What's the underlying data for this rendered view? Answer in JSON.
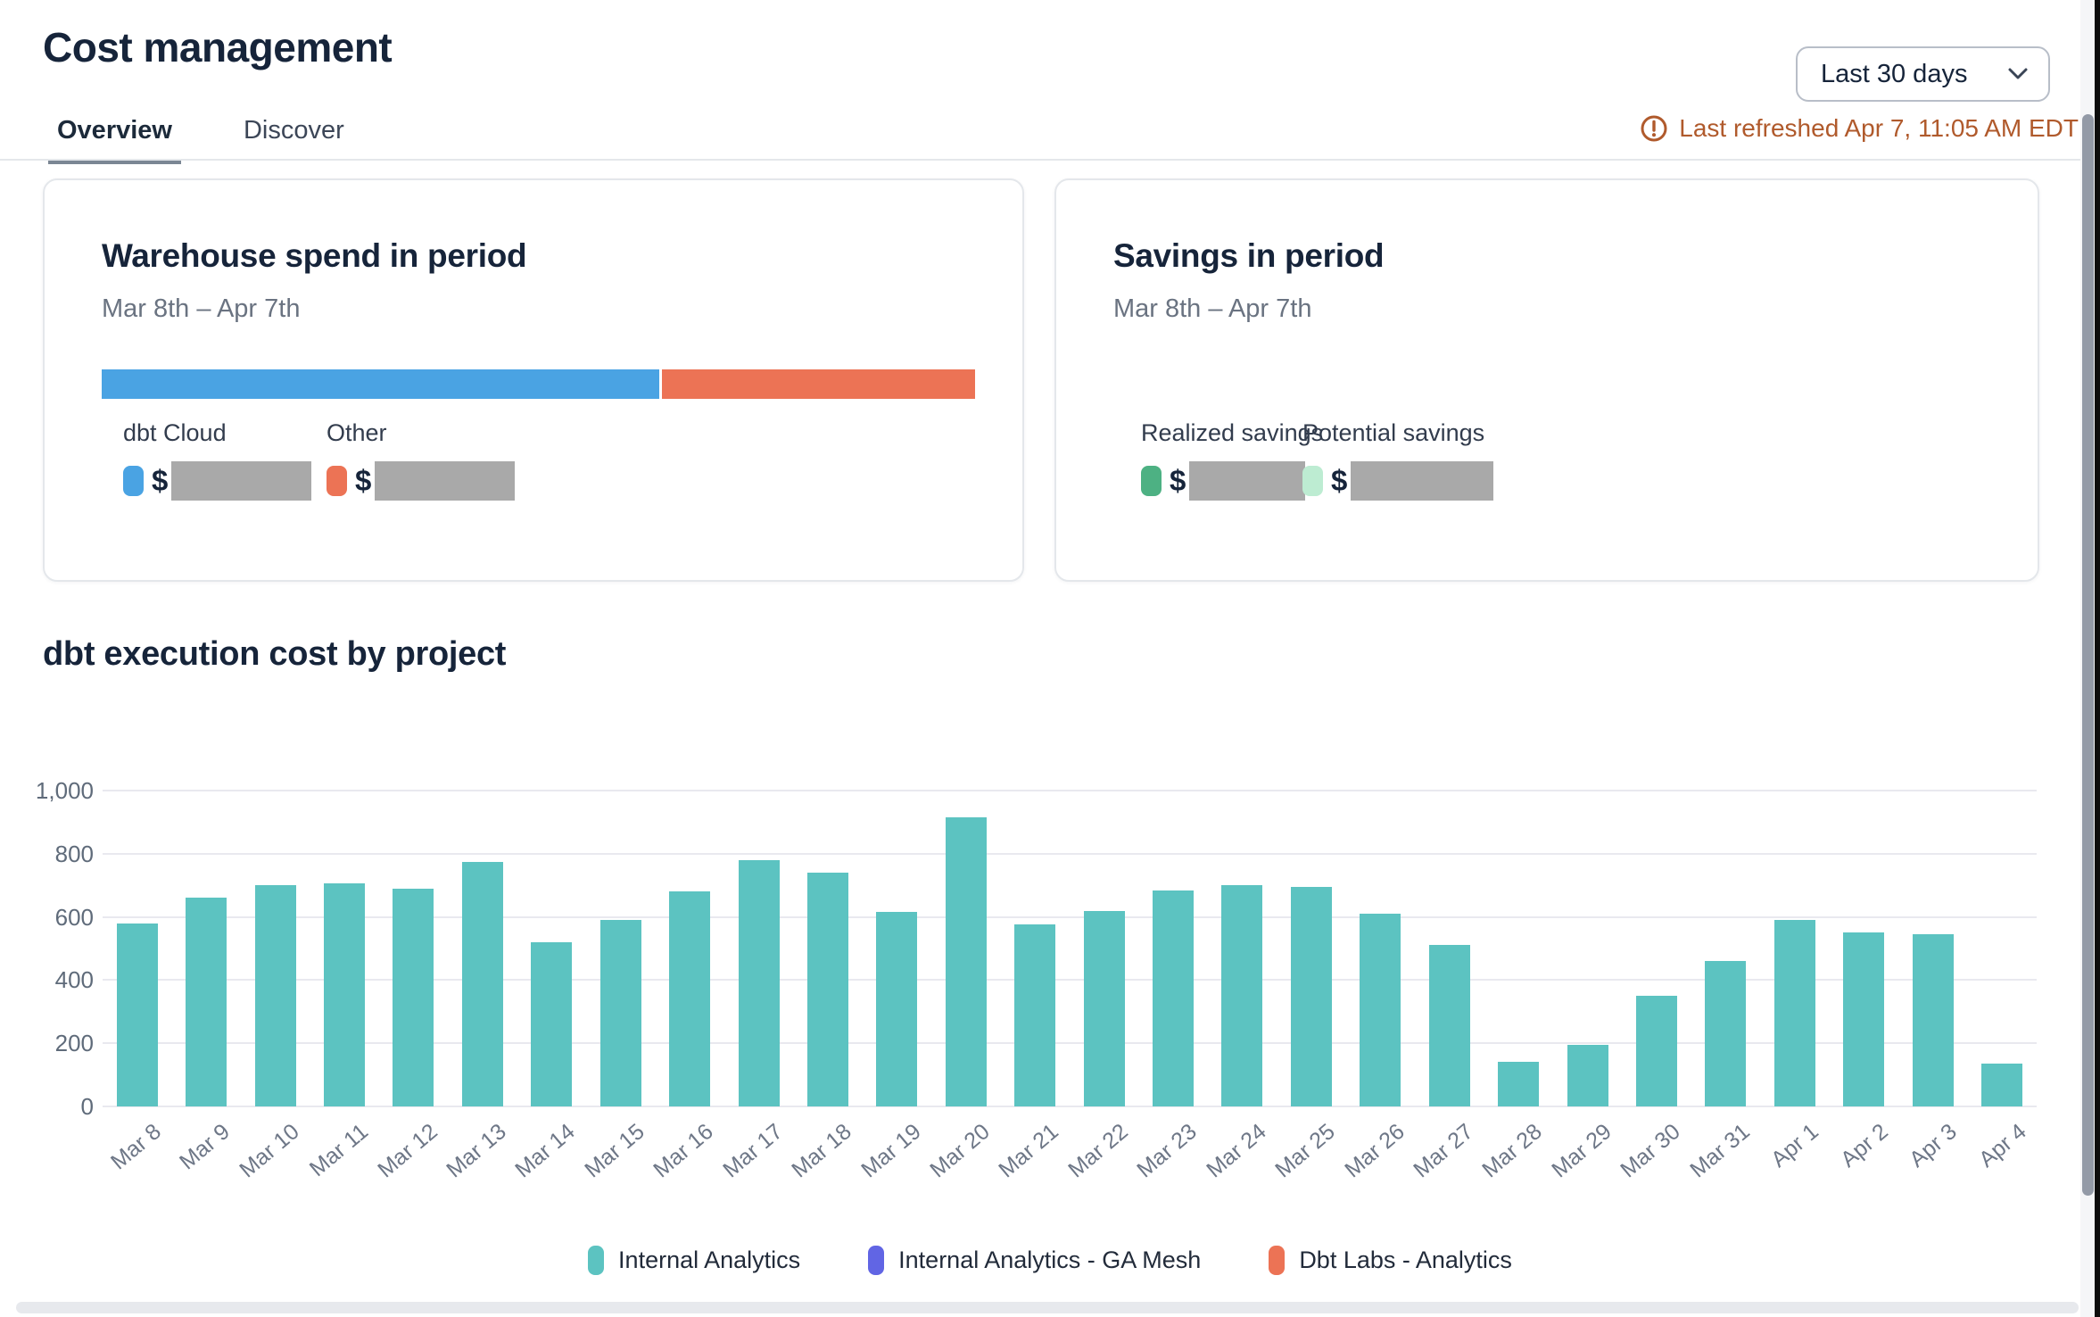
{
  "page": {
    "title": "Cost management"
  },
  "tabs": {
    "overview": "Overview",
    "discover": "Discover"
  },
  "period_dropdown": {
    "value": "Last 30 days"
  },
  "refresh": {
    "message": "Last refreshed Apr 7, 11:05 AM EDT",
    "color": "#b05a2c"
  },
  "warehouse_card": {
    "title": "Warehouse spend in period",
    "date_range": "Mar 8th – Apr 7th",
    "bar_segments": [
      {
        "label": "dbt Cloud",
        "color": "#4aa3e3",
        "pct": 64
      },
      {
        "label": "Other",
        "color": "#ec7355",
        "pct": 36
      }
    ],
    "legend": [
      {
        "label": "dbt Cloud",
        "currency": "$",
        "color": "#4aa3e3",
        "value_redacted": true
      },
      {
        "label": "Other",
        "currency": "$",
        "color": "#ec7355",
        "value_redacted": true
      }
    ]
  },
  "savings_card": {
    "title": "Savings in period",
    "date_range": "Mar 8th – Apr 7th",
    "legend": [
      {
        "label": "Realized savings",
        "currency": "$",
        "color": "#4db183",
        "value_redacted": true
      },
      {
        "label": "Potential savings",
        "currency": "$",
        "color": "#bdecd2",
        "value_redacted": true
      }
    ]
  },
  "chart_data": {
    "type": "bar",
    "title": "dbt execution cost by project",
    "categories": [
      "Mar 8",
      "Mar 9",
      "Mar 10",
      "Mar 11",
      "Mar 12",
      "Mar 13",
      "Mar 14",
      "Mar 15",
      "Mar 16",
      "Mar 17",
      "Mar 18",
      "Mar 19",
      "Mar 20",
      "Mar 21",
      "Mar 22",
      "Mar 23",
      "Mar 24",
      "Mar 25",
      "Mar 26",
      "Mar 27",
      "Mar 28",
      "Mar 29",
      "Mar 30",
      "Mar 31",
      "Apr 1",
      "Apr 2",
      "Apr 3",
      "Apr 4"
    ],
    "series": [
      {
        "name": "Internal Analytics",
        "color": "#5cc3c1",
        "values": [
          580,
          660,
          700,
          705,
          690,
          775,
          520,
          590,
          680,
          780,
          740,
          615,
          915,
          575,
          620,
          685,
          700,
          695,
          610,
          510,
          140,
          195,
          350,
          460,
          590,
          550,
          545,
          135
        ]
      }
    ],
    "legend": [
      {
        "label": "Internal Analytics",
        "color": "#5cc3c1"
      },
      {
        "label": "Internal Analytics - GA Mesh",
        "color": "#6165e4"
      },
      {
        "label": "Dbt Labs - Analytics",
        "color": "#ec7355"
      }
    ],
    "ylim": [
      0,
      1000
    ],
    "yticks": [
      0,
      200,
      400,
      600,
      800,
      1000
    ],
    "grid": true,
    "legend_position": "bottom",
    "xlabel": "",
    "ylabel": ""
  }
}
